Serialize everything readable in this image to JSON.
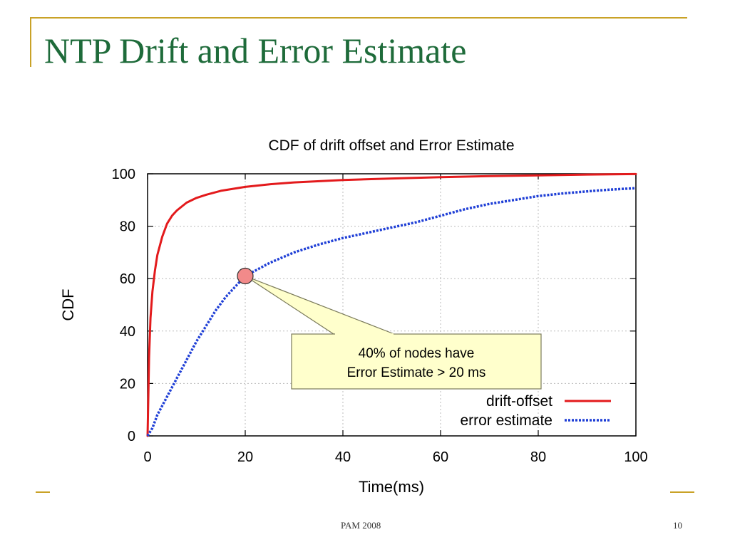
{
  "slide": {
    "title": "NTP Drift and Error Estimate",
    "footer": "PAM 2008",
    "page_number": "10",
    "accent_color": "#c9a227",
    "title_color": "#1e6b3a"
  },
  "chart_data": {
    "type": "line",
    "title": "CDF of drift offset and Error Estimate",
    "xlabel": "Time(ms)",
    "ylabel": "CDF",
    "xlim": [
      0,
      100
    ],
    "ylim": [
      0,
      100
    ],
    "xticks": [
      0,
      20,
      40,
      60,
      80,
      100
    ],
    "yticks": [
      0,
      20,
      40,
      60,
      80,
      100
    ],
    "grid": true,
    "legend_position": "bottom-right",
    "series": [
      {
        "name": "drift-offset",
        "color": "#e31a1c",
        "style": "solid",
        "x": [
          0,
          0.3,
          0.6,
          1,
          1.5,
          2,
          3,
          4,
          5,
          6,
          8,
          10,
          12,
          15,
          20,
          25,
          30,
          40,
          50,
          60,
          70,
          80,
          90,
          100
        ],
        "y": [
          0,
          30,
          45,
          55,
          63,
          69,
          76,
          81,
          84,
          86,
          89,
          90.8,
          92,
          93.5,
          95,
          96,
          96.7,
          97.6,
          98.2,
          98.7,
          99.1,
          99.4,
          99.7,
          99.9
        ]
      },
      {
        "name": "error estimate",
        "color": "#1f3fd6",
        "style": "dotted",
        "x": [
          0,
          1,
          2,
          4,
          6,
          8,
          10,
          12,
          14,
          16,
          18,
          20,
          25,
          30,
          35,
          40,
          45,
          50,
          55,
          60,
          65,
          70,
          75,
          80,
          85,
          90,
          95,
          100
        ],
        "y": [
          0,
          3,
          8,
          15,
          22,
          29,
          36,
          42,
          48,
          53,
          57,
          61,
          66,
          70,
          73,
          75.5,
          77.5,
          79.5,
          81.5,
          84,
          86.5,
          88.5,
          90,
          91.5,
          92.5,
          93.3,
          94,
          94.5
        ]
      }
    ],
    "annotation": {
      "line1": "40% of nodes have",
      "line2": "Error Estimate > 20 ms",
      "marker_x": 20,
      "marker_y": 61,
      "marker_color": "#f28a8a",
      "box_color": "#ffffcc"
    }
  }
}
